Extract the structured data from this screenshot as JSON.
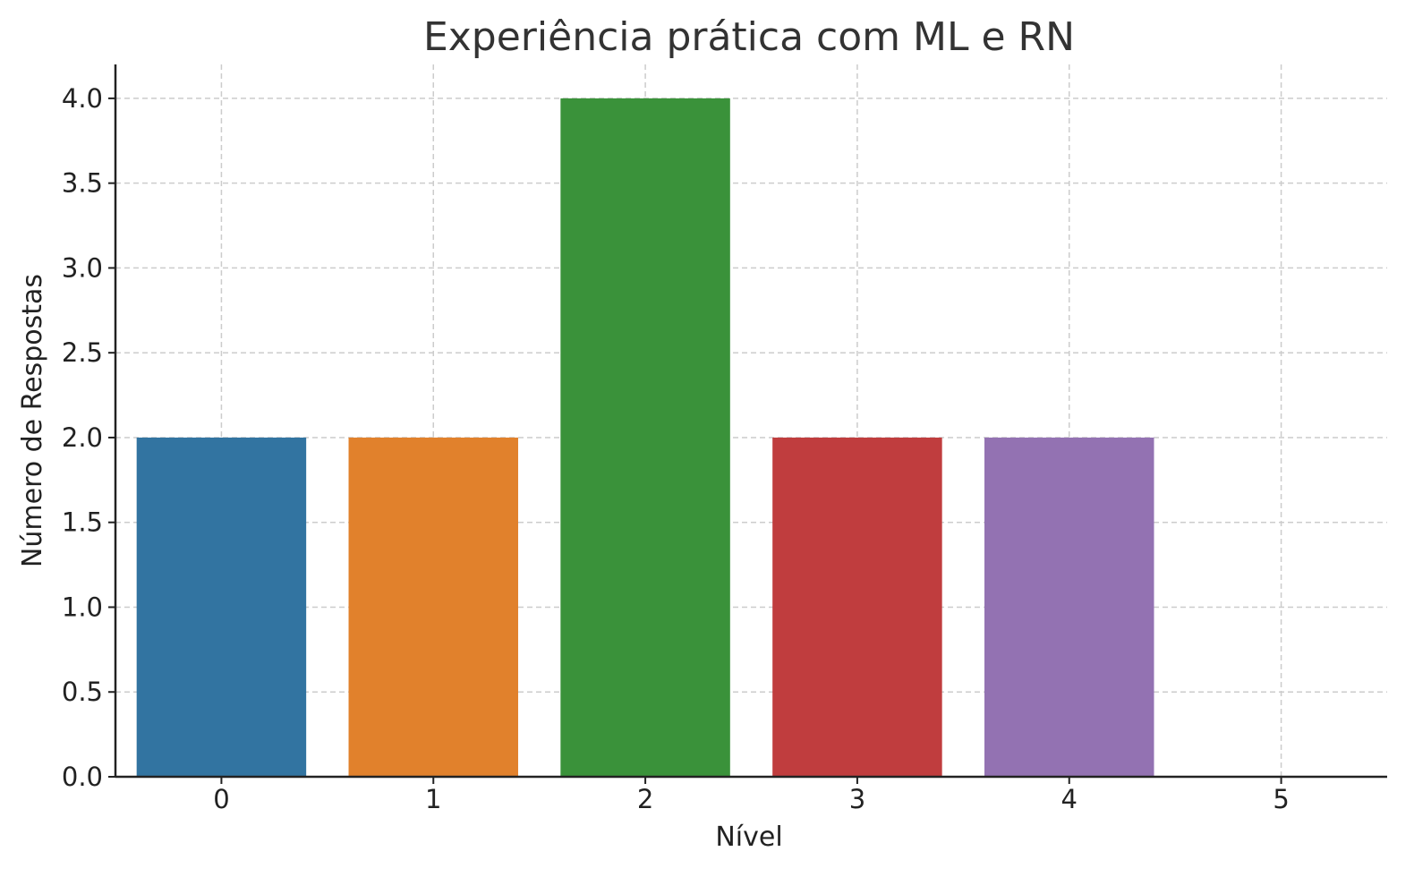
{
  "chart_data": {
    "type": "bar",
    "title": "Experiência prática com ML e RN",
    "xlabel": "Nível",
    "ylabel": "Número de Respostas",
    "categories": [
      "0",
      "1",
      "2",
      "3",
      "4",
      "5"
    ],
    "values": [
      2,
      2,
      4,
      2,
      2,
      0
    ],
    "colors": [
      "#3274a1",
      "#e1812c",
      "#3a923a",
      "#c03d3e",
      "#9372b2",
      "#845b53"
    ],
    "ylim": [
      0,
      4.2
    ],
    "yticks": [
      "0.0",
      "0.5",
      "1.0",
      "1.5",
      "2.0",
      "2.5",
      "3.0",
      "3.5",
      "4.0"
    ],
    "grid": true,
    "legend": "none"
  }
}
